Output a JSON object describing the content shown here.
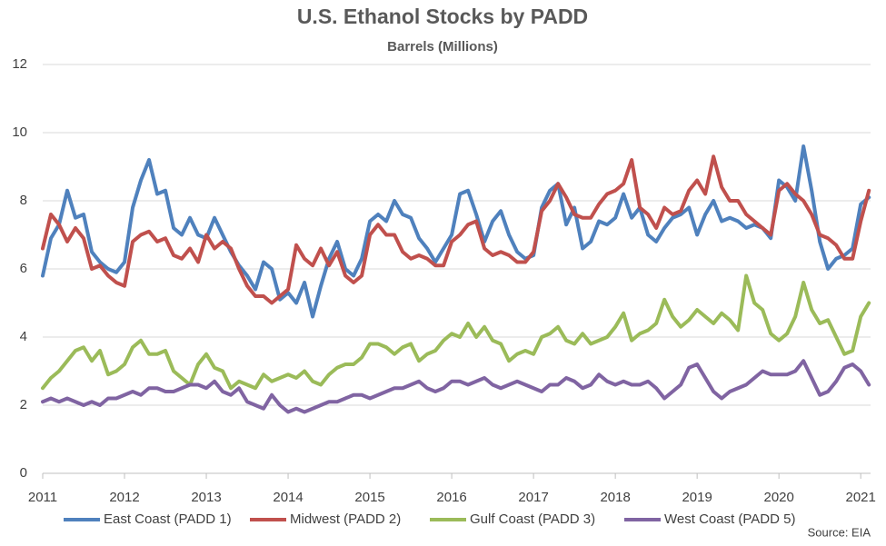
{
  "chart_data": {
    "type": "line",
    "title": "U.S. Ethanol Stocks by PADD",
    "subtitle": "Barrels (Millions)",
    "source": "Source: EIA",
    "x": [
      2011.0,
      2011.1,
      2011.2,
      2011.3,
      2011.4,
      2011.5,
      2011.6,
      2011.7,
      2011.8,
      2011.9,
      2012.0,
      2012.1,
      2012.2,
      2012.3,
      2012.4,
      2012.5,
      2012.6,
      2012.7,
      2012.8,
      2012.9,
      2013.0,
      2013.1,
      2013.2,
      2013.3,
      2013.4,
      2013.5,
      2013.6,
      2013.7,
      2013.8,
      2013.9,
      2014.0,
      2014.1,
      2014.2,
      2014.3,
      2014.4,
      2014.5,
      2014.6,
      2014.7,
      2014.8,
      2014.9,
      2015.0,
      2015.1,
      2015.2,
      2015.3,
      2015.4,
      2015.5,
      2015.6,
      2015.7,
      2015.8,
      2015.9,
      2016.0,
      2016.1,
      2016.2,
      2016.3,
      2016.4,
      2016.5,
      2016.6,
      2016.7,
      2016.8,
      2016.9,
      2017.0,
      2017.1,
      2017.2,
      2017.3,
      2017.4,
      2017.5,
      2017.6,
      2017.7,
      2017.8,
      2017.9,
      2018.0,
      2018.1,
      2018.2,
      2018.3,
      2018.4,
      2018.5,
      2018.6,
      2018.7,
      2018.8,
      2018.9,
      2019.0,
      2019.1,
      2019.2,
      2019.3,
      2019.4,
      2019.5,
      2019.6,
      2019.7,
      2019.8,
      2019.9,
      2020.0,
      2020.1,
      2020.2,
      2020.3,
      2020.4,
      2020.5,
      2020.6,
      2020.7,
      2020.8,
      2020.9,
      2021.0,
      2021.1
    ],
    "series": [
      {
        "name": "East Coast (PADD 1)",
        "color": "#4f81bd",
        "values": [
          5.8,
          6.9,
          7.3,
          8.3,
          7.5,
          7.6,
          6.5,
          6.2,
          6.0,
          5.9,
          6.2,
          7.8,
          8.6,
          9.2,
          8.2,
          8.3,
          7.2,
          7.0,
          7.5,
          7.0,
          6.9,
          7.5,
          7.0,
          6.5,
          6.1,
          5.8,
          5.4,
          6.2,
          6.0,
          5.1,
          5.3,
          5.0,
          5.6,
          4.6,
          5.5,
          6.3,
          6.8,
          6.0,
          5.8,
          6.3,
          7.4,
          7.6,
          7.4,
          8.0,
          7.6,
          7.5,
          6.9,
          6.6,
          6.2,
          6.6,
          7.0,
          8.2,
          8.3,
          7.6,
          6.8,
          7.4,
          7.7,
          7.0,
          6.5,
          6.3,
          6.4,
          7.8,
          8.3,
          8.5,
          7.3,
          7.8,
          6.6,
          6.8,
          7.4,
          7.3,
          7.5,
          8.2,
          7.5,
          7.8,
          7.0,
          6.8,
          7.2,
          7.5,
          7.6,
          7.8,
          7.0,
          7.6,
          8.0,
          7.4,
          7.5,
          7.4,
          7.2,
          7.3,
          7.2,
          6.9,
          8.6,
          8.4,
          8.0,
          9.6,
          8.3,
          6.8,
          6.0,
          6.3,
          6.4,
          6.6,
          7.9,
          8.1
        ]
      },
      {
        "name": "Midwest (PADD 2)",
        "color": "#c0504d",
        "values": [
          6.6,
          7.6,
          7.3,
          6.8,
          7.2,
          6.9,
          6.0,
          6.1,
          5.8,
          5.6,
          5.5,
          6.8,
          7.0,
          7.1,
          6.8,
          6.9,
          6.4,
          6.3,
          6.6,
          6.2,
          7.0,
          6.6,
          6.8,
          6.6,
          6.0,
          5.5,
          5.2,
          5.2,
          5.0,
          5.2,
          5.4,
          6.7,
          6.3,
          6.1,
          6.6,
          6.1,
          6.5,
          5.8,
          5.6,
          5.8,
          7.0,
          7.3,
          7.0,
          7.0,
          6.5,
          6.3,
          6.4,
          6.3,
          6.1,
          6.1,
          6.8,
          7.0,
          7.3,
          7.4,
          6.6,
          6.4,
          6.5,
          6.4,
          6.2,
          6.2,
          6.5,
          7.7,
          8.0,
          8.5,
          8.1,
          7.6,
          7.5,
          7.5,
          7.9,
          8.2,
          8.3,
          8.5,
          9.2,
          7.8,
          7.6,
          7.2,
          7.8,
          7.6,
          7.7,
          8.3,
          8.6,
          8.2,
          9.3,
          8.4,
          8.0,
          8.0,
          7.6,
          7.4,
          7.2,
          7.0,
          8.3,
          8.5,
          8.2,
          8.0,
          7.6,
          7.0,
          6.9,
          6.7,
          6.3,
          6.3,
          7.4,
          8.3
        ]
      },
      {
        "name": "Gulf Coast (PADD 3)",
        "color": "#9bbb59",
        "values": [
          2.5,
          2.8,
          3.0,
          3.3,
          3.6,
          3.7,
          3.3,
          3.6,
          2.9,
          3.0,
          3.2,
          3.7,
          3.9,
          3.5,
          3.5,
          3.6,
          3.0,
          2.8,
          2.6,
          3.2,
          3.5,
          3.1,
          3.0,
          2.5,
          2.7,
          2.6,
          2.5,
          2.9,
          2.7,
          2.8,
          2.9,
          2.8,
          3.0,
          2.7,
          2.6,
          2.9,
          3.1,
          3.2,
          3.2,
          3.4,
          3.8,
          3.8,
          3.7,
          3.5,
          3.7,
          3.8,
          3.3,
          3.5,
          3.6,
          3.9,
          4.1,
          4.0,
          4.4,
          4.0,
          4.3,
          3.9,
          3.8,
          3.3,
          3.5,
          3.6,
          3.5,
          4.0,
          4.1,
          4.3,
          3.9,
          3.8,
          4.1,
          3.8,
          3.9,
          4.0,
          4.3,
          4.7,
          3.9,
          4.1,
          4.2,
          4.4,
          5.1,
          4.6,
          4.3,
          4.5,
          4.8,
          4.6,
          4.4,
          4.7,
          4.5,
          4.2,
          5.8,
          5.0,
          4.8,
          4.1,
          3.9,
          4.1,
          4.6,
          5.6,
          4.8,
          4.4,
          4.5,
          4.0,
          3.5,
          3.6,
          4.6,
          5.0
        ]
      },
      {
        "name": "West Coast (PADD 5)",
        "color": "#8064a2",
        "values": [
          2.1,
          2.2,
          2.1,
          2.2,
          2.1,
          2.0,
          2.1,
          2.0,
          2.2,
          2.2,
          2.3,
          2.4,
          2.3,
          2.5,
          2.5,
          2.4,
          2.4,
          2.5,
          2.6,
          2.6,
          2.5,
          2.7,
          2.4,
          2.3,
          2.5,
          2.1,
          2.0,
          1.9,
          2.3,
          2.0,
          1.8,
          1.9,
          1.8,
          1.9,
          2.0,
          2.1,
          2.1,
          2.2,
          2.3,
          2.3,
          2.2,
          2.3,
          2.4,
          2.5,
          2.5,
          2.6,
          2.7,
          2.5,
          2.4,
          2.5,
          2.7,
          2.7,
          2.6,
          2.7,
          2.8,
          2.6,
          2.5,
          2.6,
          2.7,
          2.6,
          2.5,
          2.4,
          2.6,
          2.6,
          2.8,
          2.7,
          2.5,
          2.6,
          2.9,
          2.7,
          2.6,
          2.7,
          2.6,
          2.6,
          2.7,
          2.5,
          2.2,
          2.4,
          2.6,
          3.1,
          3.2,
          2.8,
          2.4,
          2.2,
          2.4,
          2.5,
          2.6,
          2.8,
          3.0,
          2.9,
          2.9,
          2.9,
          3.0,
          3.3,
          2.8,
          2.3,
          2.4,
          2.7,
          3.1,
          3.2,
          3.0,
          2.6
        ]
      }
    ],
    "xlim": [
      2011,
      2021.12
    ],
    "xticks": [
      2011,
      2012,
      2013,
      2014,
      2015,
      2016,
      2017,
      2018,
      2019,
      2020,
      2021
    ],
    "ylim": [
      0,
      12
    ],
    "yticks": [
      0,
      2,
      4,
      6,
      8,
      10,
      12
    ],
    "grid": true,
    "legend": "bottom"
  }
}
